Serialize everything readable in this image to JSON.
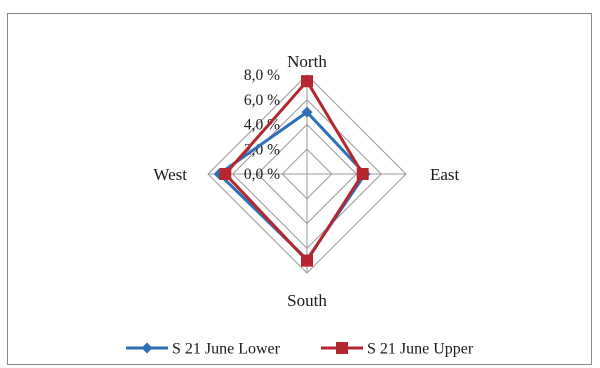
{
  "chart_data": {
    "type": "radar",
    "categories": [
      "North",
      "East",
      "South",
      "West"
    ],
    "radial_axis": {
      "range": [
        0,
        8
      ],
      "ticks": [
        0,
        2,
        4,
        6,
        8
      ],
      "tick_labels": [
        "0,0 %",
        "2,0 %",
        "4,0 %",
        "6,0 %",
        "8,0 %"
      ]
    },
    "series": [
      {
        "name": "S 21 June Lower",
        "values": [
          5.0,
          4.7,
          6.9,
          7.1
        ],
        "color": "#2e6fb5",
        "marker": "diamond"
      },
      {
        "name": "S 21 June Upper",
        "values": [
          7.5,
          4.5,
          7.0,
          6.6
        ],
        "color": "#b5262e",
        "marker": "square"
      }
    ],
    "grid": true,
    "legend_position": "bottom"
  }
}
